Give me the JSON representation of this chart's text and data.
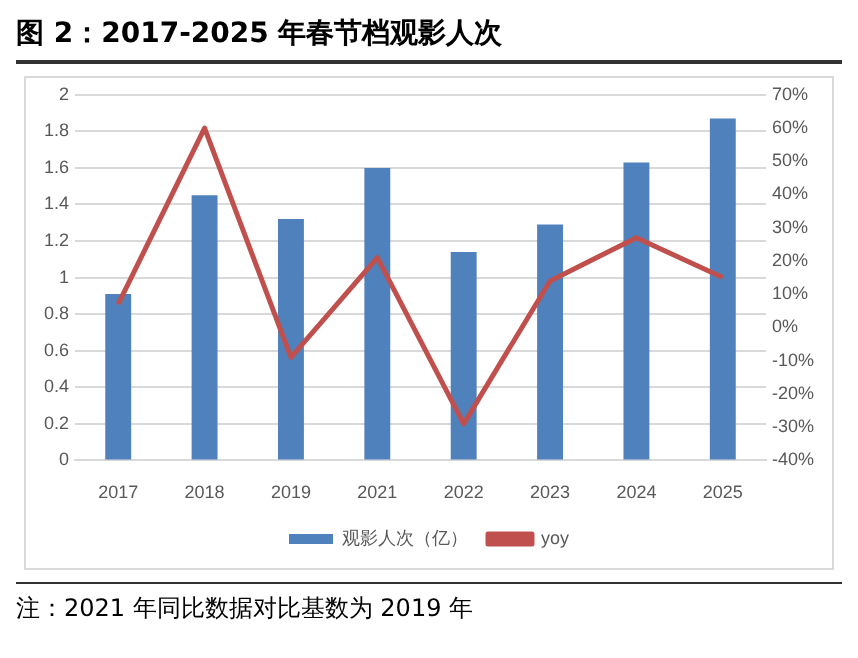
{
  "chart_data": {
    "type": "bar",
    "title": "图 2：2017-2025 年春节档观影人次",
    "categories": [
      "2017",
      "2018",
      "2019",
      "2021",
      "2022",
      "2023",
      "2024",
      "2025"
    ],
    "series": [
      {
        "name": "观影人次（亿）",
        "color": "#4f81bd",
        "values": [
          0.91,
          1.45,
          1.32,
          1.6,
          1.14,
          1.29,
          1.63,
          1.87
        ]
      },
      {
        "name": "yoy",
        "type": "line",
        "axis": "y2",
        "color": "#c0504d",
        "values": [
          7,
          60,
          -9,
          21,
          -29,
          14,
          27,
          15
        ]
      }
    ],
    "ylim": [
      0,
      2
    ],
    "yticks": [
      0,
      0.2,
      0.4,
      0.6,
      0.8,
      1,
      1.2,
      1.4,
      1.6,
      1.8,
      2
    ],
    "y2lim": [
      -40,
      70
    ],
    "y2ticks": [
      {
        "value": -40,
        "label": "-40%"
      },
      {
        "value": -30,
        "label": "-30%"
      },
      {
        "value": -20,
        "label": "-20%"
      },
      {
        "value": -10,
        "label": "-10%"
      },
      {
        "value": 0,
        "label": "0%"
      },
      {
        "value": 10,
        "label": "10%"
      },
      {
        "value": 20,
        "label": "20%"
      },
      {
        "value": 30,
        "label": "30%"
      },
      {
        "value": 40,
        "label": "40%"
      },
      {
        "value": 50,
        "label": "50%"
      },
      {
        "value": 60,
        "label": "60%"
      },
      {
        "value": 70,
        "label": "70%"
      }
    ],
    "grid": "y",
    "legend": "bottom",
    "marker": "none",
    "annotations": [
      "注：2021 年同比数据对比基数为 2019 年"
    ]
  }
}
